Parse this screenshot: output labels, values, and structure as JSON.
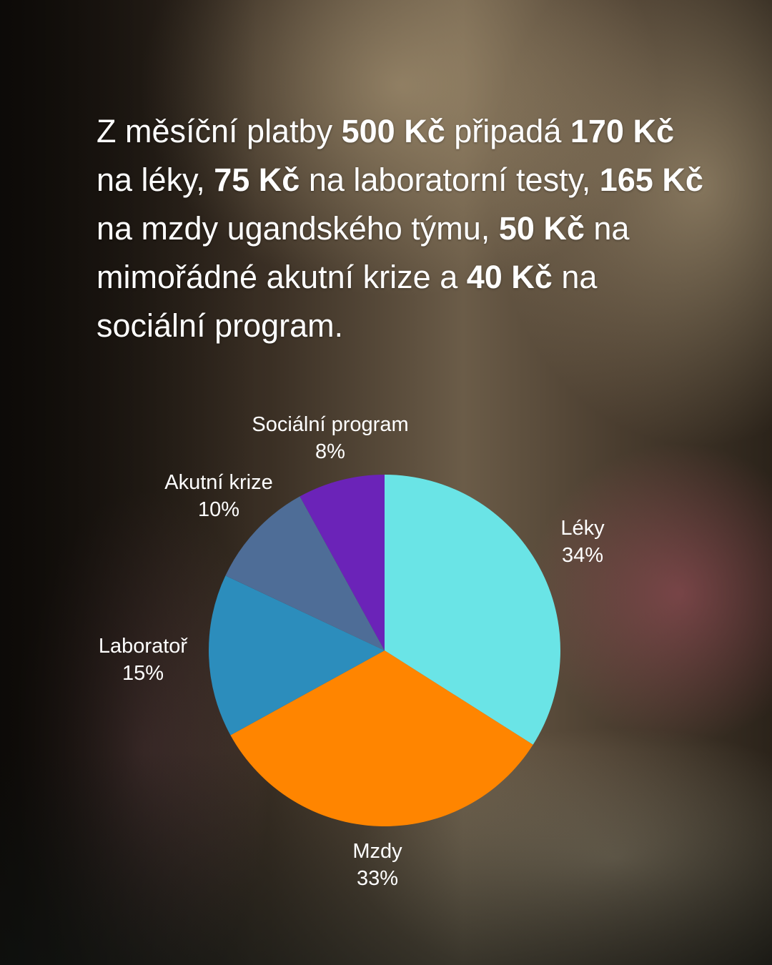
{
  "headline": {
    "p1": "Z měsíční platby ",
    "b1": "500 Kč",
    "p2": " připadá ",
    "b2": "170 Kč",
    "p3": " na léky, ",
    "b3": "75 Kč",
    "p4": " na laboratorní testy, ",
    "b4": "165 Kč",
    "p5": " na mzdy ugandského týmu, ",
    "b5": "50 Kč",
    "p6": " na mimořádné akutní krize a ",
    "b6": "40 Kč",
    "p7": " na sociální program."
  },
  "chart_data": {
    "type": "pie",
    "title": "",
    "unit": "%",
    "slices": [
      {
        "label": "Léky",
        "value": 34,
        "value_label": "34%",
        "color": "#6ae4e6"
      },
      {
        "label": "Mzdy",
        "value": 33,
        "value_label": "33%",
        "color": "#ff8500"
      },
      {
        "label": "Laboratoř",
        "value": 15,
        "value_label": "15%",
        "color": "#2c8dbc"
      },
      {
        "label": "Akutní krize",
        "value": 10,
        "value_label": "10%",
        "color": "#4e6d97"
      },
      {
        "label": "Sociální program",
        "value": 8,
        "value_label": "8%",
        "color": "#6b23b8"
      }
    ],
    "start": "12 o'clock",
    "direction": "clockwise"
  }
}
